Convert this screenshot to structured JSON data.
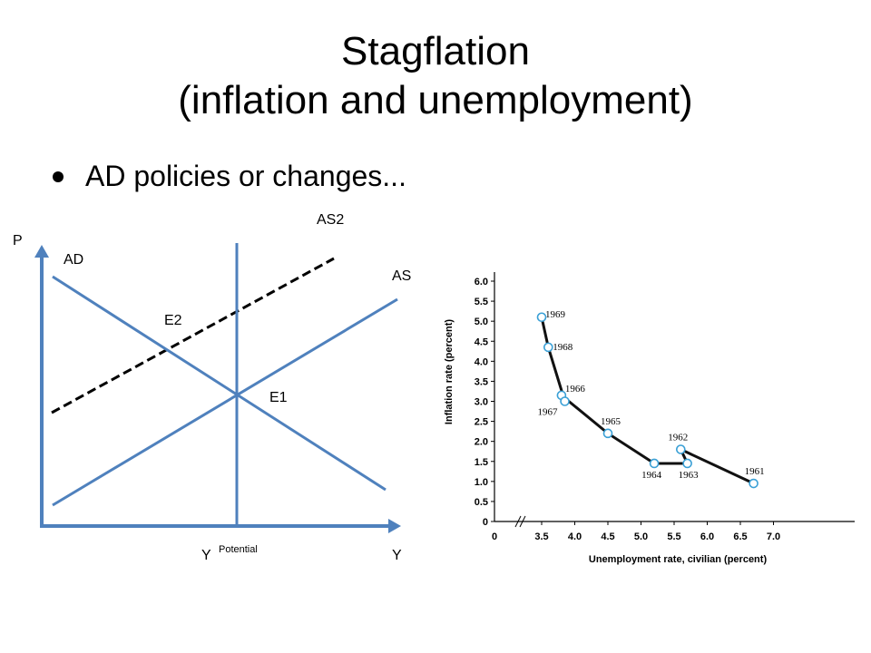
{
  "slide": {
    "title_line1": "Stagflation",
    "title_line2": "(inflation and unemployment)",
    "bullet": "AD policies or changes..."
  },
  "chart_data": [
    {
      "type": "line",
      "labels": {
        "price_axis": "P",
        "output_axis": "Y",
        "potential": "Y",
        "potential_sub": "Potential",
        "ad": "AD",
        "as": "AS",
        "as2": "AS2",
        "e1": "E1",
        "e2": "E2"
      },
      "colors": {
        "curves": "#4f81bd",
        "axes": "#4f81bd",
        "as2": "#000000"
      }
    },
    {
      "type": "line",
      "ylabel": "Inflation rate (percent)",
      "xlabel": "Unemployment rate, civilian (percent)",
      "xticks": [
        "0",
        "3.5",
        "4.0",
        "4.5",
        "5.0",
        "5.5",
        "6.0",
        "6.5",
        "7.0"
      ],
      "yticks": [
        "0",
        "0.5",
        "1.0",
        "1.5",
        "2.0",
        "2.5",
        "3.0",
        "3.5",
        "4.0",
        "4.5",
        "5.0",
        "5.5",
        "6.0"
      ],
      "ylim": [
        0,
        6.0
      ],
      "xlim": [
        3.25,
        7.25
      ],
      "series": [
        {
          "points": [
            {
              "x": 6.7,
              "y": 0.95,
              "label": "1961"
            },
            {
              "x": 5.6,
              "y": 1.8,
              "label": "1962"
            },
            {
              "x": 5.7,
              "y": 1.45,
              "label": "1963"
            },
            {
              "x": 5.2,
              "y": 1.45,
              "label": "1964"
            },
            {
              "x": 4.5,
              "y": 2.2,
              "label": "1965"
            },
            {
              "x": 3.8,
              "y": 3.15,
              "label": "1966"
            },
            {
              "x": 3.85,
              "y": 3.0,
              "label": "1967"
            },
            {
              "x": 3.6,
              "y": 4.35,
              "label": "1968"
            },
            {
              "x": 3.5,
              "y": 5.1,
              "label": "1969"
            }
          ]
        }
      ],
      "colors": {
        "line": "#111111",
        "marker_stroke": "#3aa0d6",
        "marker_fill": "#ffffff"
      }
    }
  ]
}
